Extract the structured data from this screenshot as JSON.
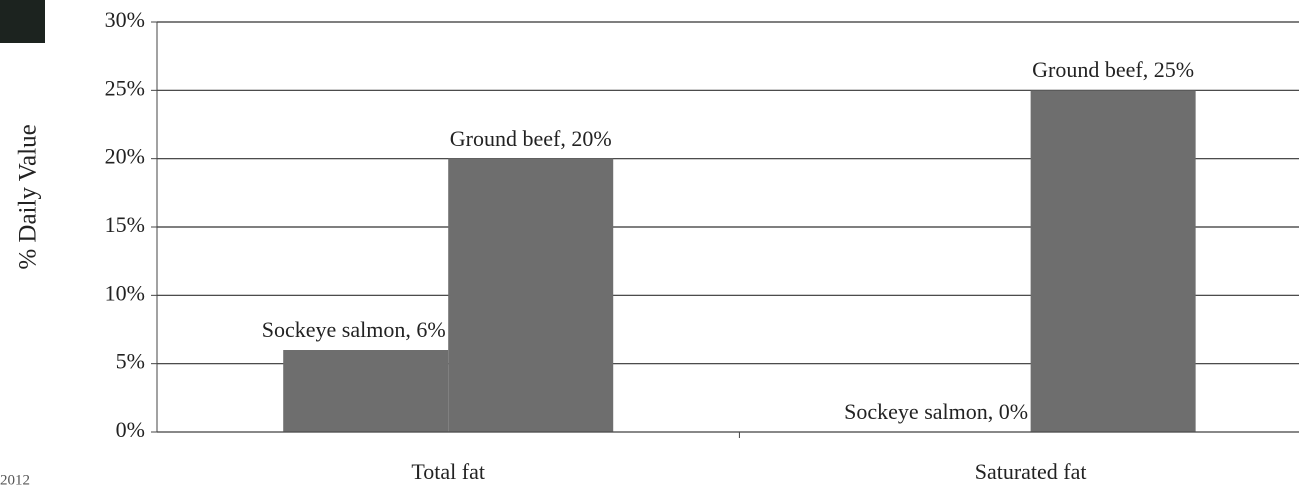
{
  "chart_data": {
    "type": "bar",
    "y_label": "% Daily Value",
    "categories": [
      "Total fat",
      "Saturated fat"
    ],
    "series": [
      {
        "name": "Sockeye salmon",
        "color": "#6e6e6e",
        "values": [
          6,
          0
        ],
        "value_labels": [
          "Sockeye salmon, 6%",
          "Sockeye salmon, 0%"
        ]
      },
      {
        "name": "Ground beef",
        "color": "#6e6e6e",
        "values": [
          20,
          25
        ],
        "value_labels": [
          "Ground beef, 20%",
          "Ground beef, 25%"
        ]
      }
    ],
    "ylim": [
      0,
      30
    ],
    "yticks": [
      {
        "value": 0,
        "label": "0%"
      },
      {
        "value": 5,
        "label": "5%"
      },
      {
        "value": 10,
        "label": "10%"
      },
      {
        "value": 15,
        "label": "15%"
      },
      {
        "value": 20,
        "label": "20%"
      },
      {
        "value": 25,
        "label": "25%"
      },
      {
        "value": 30,
        "label": "30%"
      }
    ],
    "grid": true,
    "footer_text": "2012"
  }
}
